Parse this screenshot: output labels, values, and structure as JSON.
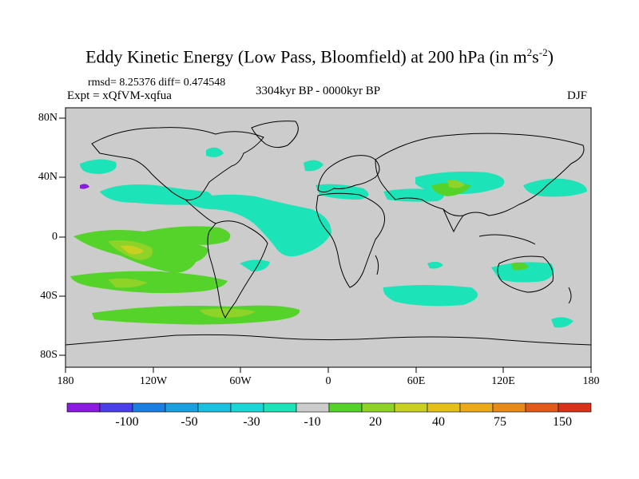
{
  "title": {
    "main": "Eddy Kinetic Energy (Low Pass, Bloomfield) at 200 hPa (in m",
    "sup1": "2",
    "mid": "s",
    "sup2": "-2",
    "end": ")"
  },
  "stats": "rmsd= 8.25376  diff= 0.474548",
  "experiment": "Expt = xQfVM-xqfua",
  "period": "3304kyr BP - 0000kyr BP",
  "season": "DJF",
  "axes": {
    "y_labels": [
      "80N",
      "40N",
      "0",
      "40S",
      "80S"
    ],
    "x_labels": [
      "180",
      "120W",
      "60W",
      "0",
      "60E",
      "120E",
      "180"
    ]
  },
  "colorbar": {
    "labels": [
      "-100",
      "-50",
      "-30",
      "-10",
      "20",
      "40",
      "75",
      "150"
    ],
    "colors": [
      "#8b1be0",
      "#4a3fe8",
      "#1a7fe0",
      "#1aa0e0",
      "#19c0e0",
      "#1ad6d6",
      "#1de3b8",
      "#cccccc",
      "#55d32a",
      "#8fd228",
      "#c9d022",
      "#e6c01a",
      "#ecaa1a",
      "#e88a1a",
      "#e25a1a",
      "#d8321a"
    ]
  },
  "map": {
    "background": "#cccccc",
    "cyan": "#1de3b8",
    "green": "#55d32a",
    "lime": "#8fd228",
    "yellow": "#c9d022"
  }
}
